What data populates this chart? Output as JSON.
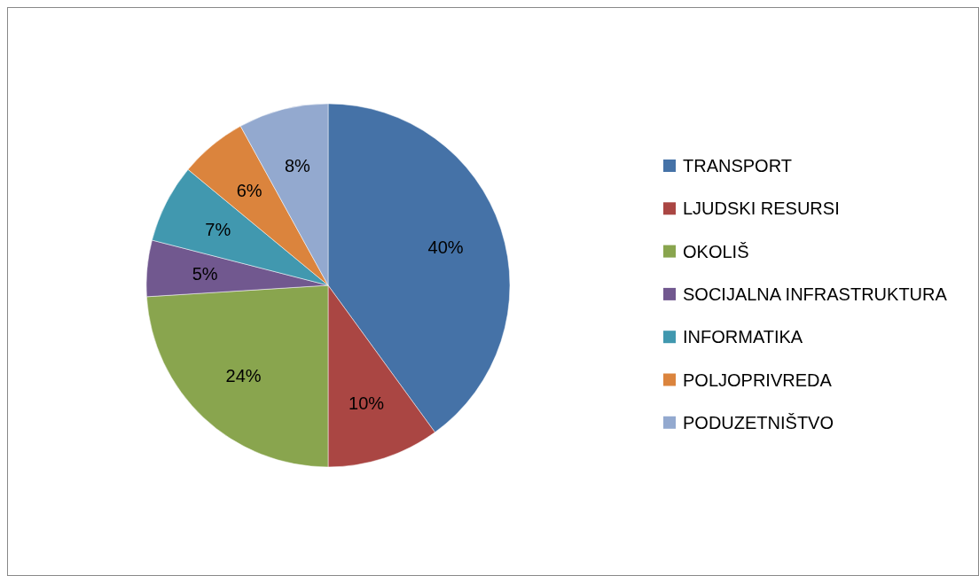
{
  "chart_data": {
    "type": "pie",
    "categories": [
      "TRANSPORT",
      "LJUDSKI RESURSI",
      "OKOLIŠ",
      "SOCIJALNA INFRASTRUKTURA",
      "INFORMATIKA",
      "POLJOPRIVREDA",
      "PODUZETNIŠTVO"
    ],
    "values": [
      40,
      10,
      24,
      5,
      7,
      6,
      8
    ],
    "value_labels": [
      "40%",
      "10%",
      "24%",
      "5%",
      "7%",
      "6%",
      "8%"
    ],
    "colors": [
      "#4572a7",
      "#aa4643",
      "#89a54e",
      "#71588f",
      "#4198af",
      "#db843d",
      "#93a9cf"
    ],
    "legend": "right"
  }
}
